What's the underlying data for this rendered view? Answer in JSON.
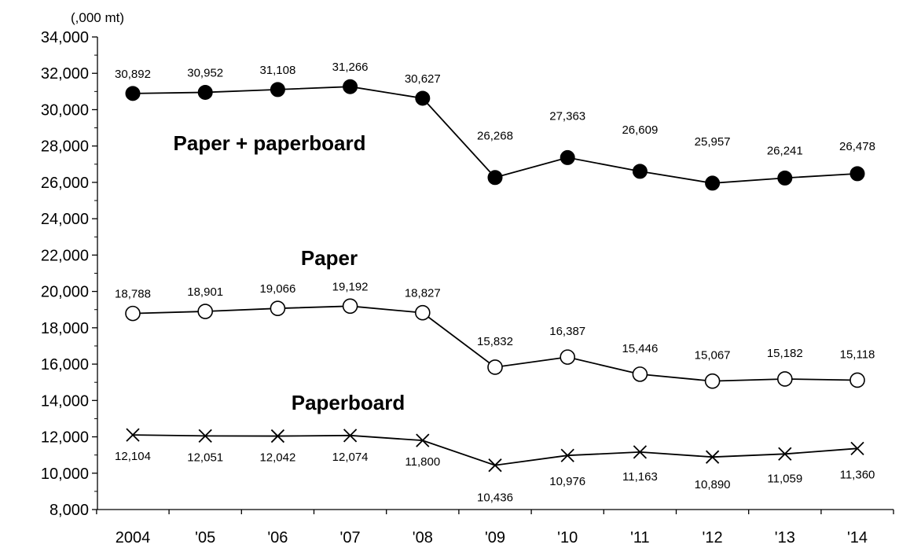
{
  "chart_data": {
    "type": "line",
    "title": "",
    "ylabel": "(,000 mt)",
    "xlabel": "",
    "ylim": [
      8000,
      34000
    ],
    "y_ticks": [
      "8,000",
      "10,000",
      "12,000",
      "14,000",
      "16,000",
      "18,000",
      "20,000",
      "22,000",
      "24,000",
      "26,000",
      "28,000",
      "30,000",
      "32,000",
      "34,000"
    ],
    "categories": [
      "2004",
      "'05",
      "'06",
      "'07",
      "'08",
      "'09",
      "'10",
      "'11",
      "'12",
      "'13",
      "'14"
    ],
    "legend": "inline labels",
    "grid": false,
    "series": [
      {
        "name": "Paper + paperboard",
        "marker": "filled-circle",
        "color": "#000000",
        "values": [
          30892,
          30952,
          31108,
          31266,
          30627,
          26268,
          27363,
          26609,
          25957,
          26241,
          26478
        ],
        "labels": [
          "30,892",
          "30,952",
          "31,108",
          "31,266",
          "30,627",
          "26,268",
          "27,363",
          "26,609",
          "25,957",
          "26,241",
          "26,478"
        ]
      },
      {
        "name": "Paper",
        "marker": "open-circle",
        "color": "#000000",
        "values": [
          18788,
          18901,
          19066,
          19192,
          18827,
          15832,
          16387,
          15446,
          15067,
          15182,
          15118
        ],
        "labels": [
          "18,788",
          "18,901",
          "19,066",
          "19,192",
          "18,827",
          "15,832",
          "16,387",
          "15,446",
          "15,067",
          "15,182",
          "15,118"
        ]
      },
      {
        "name": "Paperboard",
        "marker": "cross",
        "color": "#000000",
        "values": [
          12104,
          12051,
          12042,
          12074,
          11800,
          10436,
          10976,
          11163,
          10890,
          11059,
          11360
        ],
        "labels": [
          "12,104",
          "12,051",
          "12,042",
          "12,074",
          "11,800",
          "10,436",
          "10,976",
          "11,163",
          "10,890",
          "11,059",
          "11,360"
        ]
      }
    ]
  }
}
